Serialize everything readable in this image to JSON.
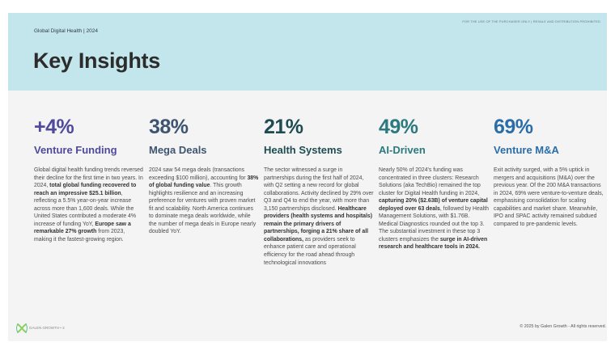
{
  "header": {
    "notice": "FOR THE USE OF THE PURCHASER ONLY | RESALE AND DISTRIBUTION PROHIBITED",
    "breadcrumb": "Global Digital Health | 2024",
    "title": "Key Insights"
  },
  "colors": {
    "header_bg": "#c3e6ec",
    "body_bg": "#f4f4f4"
  },
  "insights": [
    {
      "value": "+4%",
      "label": "Venture Funding",
      "color": "#4f4a9c",
      "segments": [
        {
          "text": "Global digital health funding trends reversed their decline for the first time in two years. In 2024, ",
          "bold": false
        },
        {
          "text": "total global funding recovered to reach an impressive $25.1 billion",
          "bold": true
        },
        {
          "text": ", reflecting a 5.5% year-on-year increase across more than 1,600 deals. While the United States contributed a moderate 4% increase of funding YoY, ",
          "bold": false
        },
        {
          "text": "Europe saw a remarkable 27% growth",
          "bold": true
        },
        {
          "text": " from 2023, making it the fastest-growing region.",
          "bold": false
        }
      ]
    },
    {
      "value": "38%",
      "label": "Mega Deals",
      "color": "#3f5470",
      "segments": [
        {
          "text": "2024 saw 54 mega deals (transactions exceeding $100 million), accounting for ",
          "bold": false
        },
        {
          "text": "38% of global funding value",
          "bold": true
        },
        {
          "text": ". This growth highlights resilience and an increasing preference for ventures with proven market fit and scalability. North America continues to dominate mega deals worldwide, while the number of mega deals in Europe nearly doubled YoY.",
          "bold": false
        }
      ]
    },
    {
      "value": "21%",
      "label": "Health Systems",
      "color": "#1e4c52",
      "segments": [
        {
          "text": "The sector witnessed a surge in partnerships during the first half of 2024, with Q2 setting a new record for global collaborations. Activity declined by 29% over Q3 and Q4 to end the year, with more than 3,150 partnerships disclosed. ",
          "bold": false
        },
        {
          "text": "Healthcare providers (health systems and hospitals) remain the primary drivers of partnerships, forging a 21% share of all collaborations,",
          "bold": true
        },
        {
          "text": " as providers seek to enhance patient care and operational efficiency for the road ahead through technological innovations",
          "bold": false
        }
      ]
    },
    {
      "value": "49%",
      "label": "AI-Driven",
      "color": "#2c7a80",
      "segments": [
        {
          "text": "Nearly 50% of 2024's funding was concentrated in three clusters: Research Solutions (aka TechBio) remained the top cluster for Digital Health funding in 2024, ",
          "bold": false
        },
        {
          "text": "capturing 20% ($2.63B) of venture capital deployed over 63 deals",
          "bold": true
        },
        {
          "text": ", followed by Health Management Solutions, with $1.76B. Medical Diagnostics rounded out the top 3. The substantial investment in these top 3 clusters emphasizes the ",
          "bold": false
        },
        {
          "text": "surge in AI-driven research and healthcare tools in 2024.",
          "bold": true
        }
      ]
    },
    {
      "value": "69%",
      "label": "Venture M&A",
      "color": "#2a6ea8",
      "segments": [
        {
          "text": "Exit activity surged, with a 5% uptick in mergers and acquisitions (M&A) over the previous year. Of the 200 M&A transactions in 2024, 69% were venture-to-venture deals, emphasising consolidation for scaling capabilities and market share. Meanwhile, IPO and SPAC activity remained subdued compared to pre-pandemic levels.",
          "bold": false
        }
      ]
    }
  ],
  "footer": {
    "logo_text": "GALEN GROWTH",
    "page": "GALEN GROWTH • 3",
    "copyright": "© 2025 by Galen Growth  - All rights reserved."
  }
}
